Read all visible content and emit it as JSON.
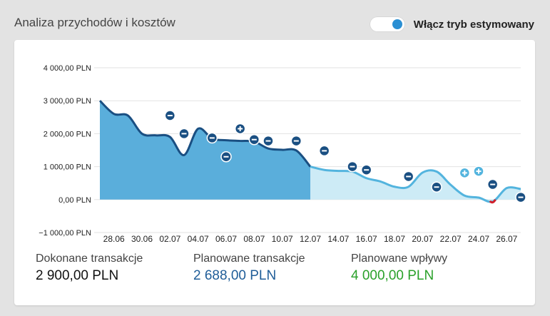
{
  "header": {
    "title": "Analiza przychodów i kosztów",
    "toggle_label": "Włącz tryb estymowany",
    "toggle_on": true
  },
  "colors": {
    "done_fill": "#5aaedb",
    "done_line": "#1a4f82",
    "planned_fill": "#cdebf6",
    "planned_line": "#53b4de",
    "negative_line": "#d21f2a",
    "marker_dark": "#1a4f82",
    "marker_light": "#53b4de"
  },
  "chart_data": {
    "type": "area",
    "ylim": [
      -1000,
      4000
    ],
    "y_ticks": [
      {
        "value": 4000,
        "label": "4 000,00 PLN"
      },
      {
        "value": 3000,
        "label": "3 000,00 PLN"
      },
      {
        "value": 2000,
        "label": "2 000,00 PLN"
      },
      {
        "value": 1000,
        "label": "1 000,00 PLN"
      },
      {
        "value": 0,
        "label": "0,00 PLN"
      },
      {
        "value": -1000,
        "label": "−1 000,00 PLN"
      }
    ],
    "x_start": "27.06",
    "x_end": "27.07",
    "x_ticks": [
      "28.06",
      "30.06",
      "02.07",
      "04.07",
      "06.07",
      "08.07",
      "10.07",
      "12.07",
      "14.07",
      "16.07",
      "18.07",
      "20.07",
      "22.07",
      "24.07",
      "26.07"
    ],
    "series": [
      {
        "name": "Dokonane transakcje",
        "points": [
          [
            "27.06",
            3000
          ],
          [
            "28.06",
            2600
          ],
          [
            "29.06",
            2550
          ],
          [
            "30.06",
            2000
          ],
          [
            "01.07",
            1950
          ],
          [
            "02.07",
            1900
          ],
          [
            "03.07",
            1350
          ],
          [
            "04.07",
            2150
          ],
          [
            "05.07",
            1850
          ],
          [
            "06.07",
            1800
          ],
          [
            "07.07",
            1780
          ],
          [
            "08.07",
            1760
          ],
          [
            "09.07",
            1550
          ],
          [
            "10.07",
            1510
          ],
          [
            "11.07",
            1490
          ],
          [
            "12.07",
            1000
          ]
        ]
      },
      {
        "name": "Planowane transakcje",
        "points": [
          [
            "12.07",
            1000
          ],
          [
            "13.07",
            900
          ],
          [
            "14.07",
            870
          ],
          [
            "15.07",
            850
          ],
          [
            "16.07",
            650
          ],
          [
            "17.07",
            550
          ],
          [
            "18.07",
            390
          ],
          [
            "19.07",
            390
          ],
          [
            "20.07",
            820
          ],
          [
            "21.07",
            850
          ],
          [
            "22.07",
            450
          ],
          [
            "23.07",
            120
          ],
          [
            "24.07",
            60
          ],
          [
            "25.07",
            -60
          ],
          [
            "26.07",
            350
          ],
          [
            "27.07",
            320
          ]
        ]
      }
    ],
    "markers": [
      {
        "date": "02.07",
        "value": 2550,
        "sign": "minus",
        "kind": "done"
      },
      {
        "date": "03.07",
        "value": 2000,
        "sign": "minus",
        "kind": "done"
      },
      {
        "date": "05.07",
        "value": 1870,
        "sign": "minus",
        "kind": "done"
      },
      {
        "date": "06.07",
        "value": 1300,
        "sign": "minus",
        "kind": "done"
      },
      {
        "date": "07.07",
        "value": 2150,
        "sign": "plus",
        "kind": "done"
      },
      {
        "date": "08.07",
        "value": 1820,
        "sign": "minus",
        "kind": "done"
      },
      {
        "date": "09.07",
        "value": 1780,
        "sign": "minus",
        "kind": "done"
      },
      {
        "date": "11.07",
        "value": 1780,
        "sign": "minus",
        "kind": "done"
      },
      {
        "date": "13.07",
        "value": 1480,
        "sign": "minus",
        "kind": "done"
      },
      {
        "date": "15.07",
        "value": 1000,
        "sign": "minus",
        "kind": "done"
      },
      {
        "date": "16.07",
        "value": 900,
        "sign": "minus",
        "kind": "done"
      },
      {
        "date": "19.07",
        "value": 700,
        "sign": "minus",
        "kind": "done"
      },
      {
        "date": "21.07",
        "value": 380,
        "sign": "minus",
        "kind": "done"
      },
      {
        "date": "23.07",
        "value": 810,
        "sign": "plus",
        "kind": "planned"
      },
      {
        "date": "24.07",
        "value": 860,
        "sign": "plus",
        "kind": "planned"
      },
      {
        "date": "25.07",
        "value": 460,
        "sign": "minus",
        "kind": "done"
      },
      {
        "date": "27.07",
        "value": 70,
        "sign": "minus",
        "kind": "done"
      }
    ]
  },
  "summary": [
    {
      "label": "Dokonane transakcje",
      "value": "2 900,00 PLN"
    },
    {
      "label": "Planowane transakcje",
      "value": "2 688,00 PLN"
    },
    {
      "label": "Planowane wpływy",
      "value": "4 000,00 PLN"
    }
  ]
}
